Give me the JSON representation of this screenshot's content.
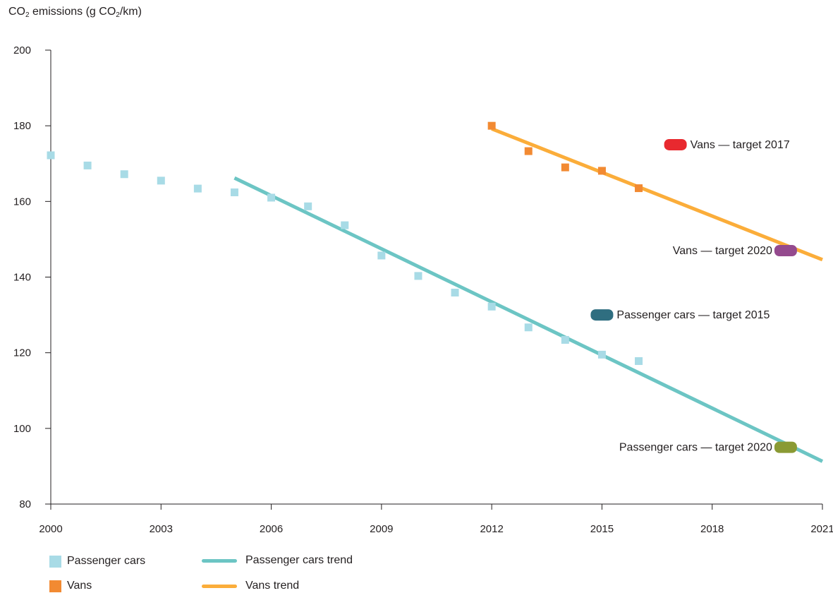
{
  "chart_data": {
    "type": "scatter",
    "ylabel": {
      "prefix": "CO",
      "sub1": "2",
      "middle": " emissions (g CO",
      "sub2": "2",
      "suffix": "/km)"
    },
    "xlabel": "",
    "xlim": [
      2000,
      2021
    ],
    "ylim": [
      80,
      200
    ],
    "x_ticks": [
      2000,
      2003,
      2006,
      2009,
      2012,
      2015,
      2018,
      2021
    ],
    "y_ticks": [
      80,
      100,
      120,
      140,
      160,
      180,
      200
    ],
    "grid": false,
    "series": [
      {
        "name": "Passenger cars",
        "kind": "points",
        "color": "#a8dbe6",
        "x": [
          2000,
          2001,
          2002,
          2003,
          2004,
          2005,
          2006,
          2007,
          2008,
          2009,
          2010,
          2011,
          2012,
          2013,
          2014,
          2015,
          2016
        ],
        "y": [
          172.2,
          169.5,
          167.2,
          165.5,
          163.4,
          162.4,
          161.0,
          158.7,
          153.7,
          145.7,
          140.3,
          135.9,
          132.2,
          126.7,
          123.4,
          119.5,
          117.8
        ]
      },
      {
        "name": "Passenger cars trend",
        "kind": "line",
        "color": "#6cc5c4",
        "x": [
          2005,
          2021
        ],
        "y": [
          166.2,
          91.3
        ]
      },
      {
        "name": "Vans",
        "kind": "points",
        "color": "#f28a32",
        "x": [
          2012,
          2013,
          2014,
          2015,
          2016
        ],
        "y": [
          180.0,
          173.3,
          169.0,
          168.1,
          163.5
        ]
      },
      {
        "name": "Vans trend",
        "kind": "line",
        "color": "#fbad3a",
        "x": [
          2012,
          2021
        ],
        "y": [
          179.2,
          144.6
        ]
      }
    ],
    "targets": [
      {
        "label": "Vans — target 2017",
        "x": 2017,
        "y": 175,
        "color": "#e8292f",
        "label_side": "right"
      },
      {
        "label": "Vans — target 2020",
        "x": 2020,
        "y": 147,
        "color": "#944a8e",
        "label_side": "left"
      },
      {
        "label": "Passenger cars — target 2015",
        "x": 2015,
        "y": 130,
        "color": "#2f6e80",
        "label_side": "right"
      },
      {
        "label": "Passenger cars — target 2020",
        "x": 2020,
        "y": 95,
        "color": "#8a9a34",
        "label_side": "left"
      }
    ],
    "legend": {
      "placement": "bottom-left",
      "items": [
        {
          "label": "Passenger cars",
          "kind": "square",
          "color": "#a8dbe6"
        },
        {
          "label": "Passenger cars trend",
          "kind": "line",
          "color": "#6cc5c4"
        },
        {
          "label": "Vans",
          "kind": "square",
          "color": "#f28a32"
        },
        {
          "label": "Vans trend",
          "kind": "line",
          "color": "#fbad3a"
        }
      ]
    }
  }
}
